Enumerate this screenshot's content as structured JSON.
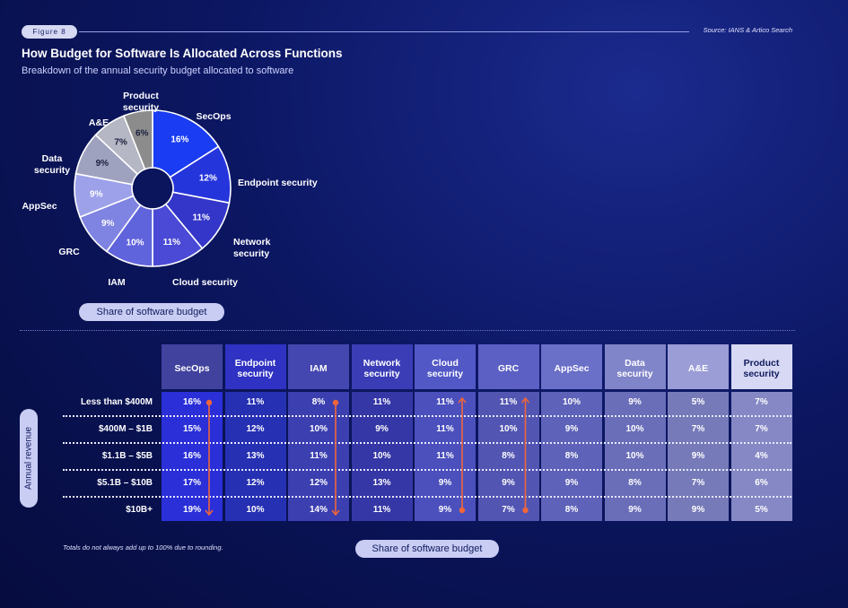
{
  "figure_label": "Figure 8",
  "source": "Source: IANS & Artico Search",
  "title": "How Budget for Software Is Allocated Across Functions",
  "subtitle": "Breakdown of the annual security budget allocated to software",
  "pie_pill": "Share of software budget",
  "table_pill": "Share of software budget",
  "footnote": "Totals do not always add up to 100% due to rounding.",
  "axis_label": "Annual revenue",
  "colors": {
    "SecOps": "#1a3cf2",
    "Endpoint security": "#2535dc",
    "Network security": "#3336c8",
    "Cloud security": "#4a4ad6",
    "IAM": "#5f63dc",
    "GRC": "#7f83e2",
    "AppSec": "#9da1ea",
    "Data security": "#9fa2bf",
    "A&E": "#b5b7c4",
    "Product security": "#8c8c8c",
    "arrow": "#f0663a"
  },
  "chart_data": [
    {
      "type": "pie",
      "title": "Share of software budget",
      "slices": [
        {
          "label": "SecOps",
          "value": 16,
          "display": "16%"
        },
        {
          "label": "Endpoint security",
          "value": 12,
          "display": "12%"
        },
        {
          "label": "Network security",
          "value": 11,
          "display": "11%"
        },
        {
          "label": "Cloud security",
          "value": 11,
          "display": "11%"
        },
        {
          "label": "IAM",
          "value": 10,
          "display": "10%"
        },
        {
          "label": "GRC",
          "value": 9,
          "display": "9%"
        },
        {
          "label": "AppSec",
          "value": 9,
          "display": "9%"
        },
        {
          "label": "Data security",
          "value": 9,
          "display": "9%"
        },
        {
          "label": "A&E",
          "value": 7,
          "display": "7%"
        },
        {
          "label": "Product security",
          "value": 6,
          "display": "6%"
        }
      ]
    },
    {
      "type": "table",
      "title": "Share of software budget",
      "row_axis_label": "Annual revenue",
      "columns": [
        "SecOps",
        "Endpoint security",
        "IAM",
        "Network security",
        "Cloud security",
        "GRC",
        "AppSec",
        "Data security",
        "A&E",
        "Product security"
      ],
      "rows": [
        {
          "label": "Less than $400M",
          "values": [
            "16%",
            "11%",
            "8%",
            "11%",
            "11%",
            "11%",
            "10%",
            "9%",
            "5%",
            "7%"
          ]
        },
        {
          "label": "$400M – $1B",
          "values": [
            "15%",
            "12%",
            "10%",
            "9%",
            "11%",
            "10%",
            "9%",
            "10%",
            "7%",
            "7%"
          ]
        },
        {
          "label": "$1.1B – $5B",
          "values": [
            "16%",
            "13%",
            "11%",
            "10%",
            "11%",
            "8%",
            "8%",
            "10%",
            "9%",
            "4%"
          ]
        },
        {
          "label": "$5.1B – $10B",
          "values": [
            "17%",
            "12%",
            "12%",
            "13%",
            "9%",
            "9%",
            "9%",
            "8%",
            "7%",
            "6%"
          ]
        },
        {
          "label": "$10B+",
          "values": [
            "19%",
            "10%",
            "14%",
            "11%",
            "9%",
            "7%",
            "8%",
            "9%",
            "9%",
            "5%"
          ]
        }
      ],
      "trends": [
        {
          "column": "SecOps",
          "direction": "down"
        },
        {
          "column": "IAM",
          "direction": "down"
        },
        {
          "column": "Cloud security",
          "direction": "up"
        },
        {
          "column": "GRC",
          "direction": "up"
        }
      ]
    }
  ]
}
